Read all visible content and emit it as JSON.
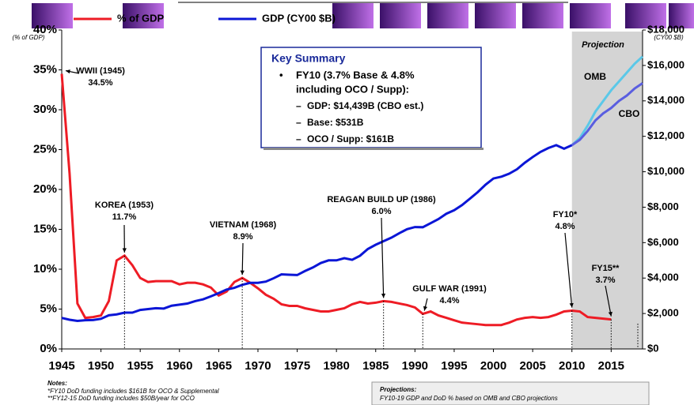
{
  "chart_data": {
    "type": "line",
    "xlim": [
      1945,
      2019
    ],
    "xticks": [
      1945,
      1950,
      1955,
      1960,
      1965,
      1970,
      1975,
      1980,
      1985,
      1990,
      1995,
      2000,
      2005,
      2010,
      2015
    ],
    "ylim": [
      0,
      40
    ],
    "yticks": [
      {
        "value": 0,
        "label": "0%"
      },
      {
        "value": 5,
        "label": "5%"
      },
      {
        "value": 10,
        "label": "10%"
      },
      {
        "value": 15,
        "label": "15%"
      },
      {
        "value": 20,
        "label": "20%"
      },
      {
        "value": 25,
        "label": "25%"
      },
      {
        "value": 30,
        "label": "30%"
      },
      {
        "value": 35,
        "label": "35%"
      },
      {
        "value": 40,
        "label": "40%"
      }
    ],
    "y_unit": "(% of GDP)",
    "y2lim": [
      0,
      18000
    ],
    "y2ticks": [
      {
        "value": 0,
        "label": "$0"
      },
      {
        "value": 2000,
        "label": "$2,000"
      },
      {
        "value": 4000,
        "label": "$4,000"
      },
      {
        "value": 6000,
        "label": "$6,000"
      },
      {
        "value": 8000,
        "label": "$8,000"
      },
      {
        "value": 10000,
        "label": "$10,000"
      },
      {
        "value": 12000,
        "label": "$12,000"
      },
      {
        "value": 14000,
        "label": "$14,000"
      },
      {
        "value": 16000,
        "label": "$16,000"
      },
      {
        "value": 18000,
        "label": "$18,000"
      }
    ],
    "y2_unit": "(CY00 $B)",
    "series": [
      {
        "name": "% of GDP",
        "color": "#ee1c25",
        "x": [
          1945,
          1946,
          1947,
          1948,
          1949,
          1950,
          1951,
          1952,
          1953,
          1954,
          1955,
          1956,
          1957,
          1958,
          1959,
          1960,
          1961,
          1962,
          1963,
          1964,
          1965,
          1966,
          1967,
          1968,
          1969,
          1970,
          1971,
          1972,
          1973,
          1974,
          1975,
          1976,
          1977,
          1978,
          1979,
          1980,
          1981,
          1982,
          1983,
          1984,
          1985,
          1986,
          1987,
          1988,
          1989,
          1990,
          1991,
          1992,
          1993,
          1994,
          1995,
          1996,
          1997,
          1998,
          1999,
          2000,
          2001,
          2002,
          2003,
          2004,
          2005,
          2006,
          2007,
          2008,
          2009,
          2010,
          2011,
          2012,
          2013,
          2014,
          2015
        ],
        "values": [
          34.5,
          22,
          5.7,
          3.9,
          4.0,
          4.2,
          6.0,
          11.1,
          11.7,
          10.5,
          8.9,
          8.4,
          8.5,
          8.5,
          8.5,
          8.1,
          8.3,
          8.3,
          8.1,
          7.7,
          6.7,
          7.2,
          8.4,
          8.9,
          8.3,
          7.6,
          6.8,
          6.3,
          5.6,
          5.4,
          5.4,
          5.1,
          4.9,
          4.7,
          4.7,
          4.9,
          5.1,
          5.6,
          5.9,
          5.7,
          5.8,
          6.0,
          5.9,
          5.7,
          5.5,
          5.2,
          4.4,
          4.7,
          4.2,
          3.9,
          3.6,
          3.3,
          3.2,
          3.1,
          3.0,
          3.0,
          3.0,
          3.3,
          3.7,
          3.9,
          4.0,
          3.9,
          4.0,
          4.3,
          4.7,
          4.8,
          4.7,
          4.0,
          3.9,
          3.8,
          3.7
        ]
      },
      {
        "name": "GDP (CY00 $B)",
        "color": "#0b16d6",
        "axis": "y2",
        "x": [
          1945,
          1946,
          1947,
          1948,
          1949,
          1950,
          1951,
          1952,
          1953,
          1954,
          1955,
          1956,
          1957,
          1958,
          1959,
          1960,
          1961,
          1962,
          1963,
          1964,
          1965,
          1966,
          1967,
          1968,
          1969,
          1970,
          1971,
          1972,
          1973,
          1974,
          1975,
          1976,
          1977,
          1978,
          1979,
          1980,
          1981,
          1982,
          1983,
          1984,
          1985,
          1986,
          1987,
          1988,
          1989,
          1990,
          1991,
          1992,
          1993,
          1994,
          1995,
          1996,
          1997,
          1998,
          1999,
          2000,
          2001,
          2002,
          2003,
          2004,
          2005,
          2006,
          2007,
          2008,
          2009,
          2010
        ],
        "values": [
          1750,
          1650,
          1580,
          1620,
          1630,
          1700,
          1900,
          1950,
          2050,
          2050,
          2200,
          2250,
          2300,
          2280,
          2440,
          2500,
          2560,
          2700,
          2800,
          2970,
          3150,
          3350,
          3450,
          3620,
          3730,
          3730,
          3800,
          3990,
          4210,
          4190,
          4170,
          4400,
          4600,
          4850,
          5000,
          5000,
          5120,
          5030,
          5260,
          5640,
          5880,
          6080,
          6280,
          6530,
          6760,
          6880,
          6870,
          7100,
          7330,
          7630,
          7830,
          8120,
          8480,
          8850,
          9270,
          9620,
          9720,
          9890,
          10140,
          10510,
          10830,
          11120,
          11340,
          11500,
          11300,
          11500
        ]
      }
    ],
    "projections": [
      {
        "name": "OMB",
        "color": "#5bc8e8",
        "axis": "y2",
        "x": [
          2010,
          2011,
          2012,
          2013,
          2014,
          2015,
          2016,
          2017,
          2018,
          2019
        ],
        "values": [
          11500,
          11900,
          12600,
          13400,
          14000,
          14600,
          15100,
          15600,
          16100,
          16500
        ]
      },
      {
        "name": "CBO",
        "color": "#5a5ee0",
        "axis": "y2",
        "x": [
          2010,
          2011,
          2012,
          2013,
          2014,
          2015,
          2016,
          2017,
          2018,
          2019
        ],
        "values": [
          11500,
          11800,
          12300,
          12900,
          13300,
          13600,
          14000,
          14300,
          14700,
          15000
        ]
      }
    ],
    "projection_label": "Projection",
    "projection_start": 2010,
    "annotations": [
      {
        "label": "WWII (1945)",
        "value_label": "34.5%",
        "x": 1945
      },
      {
        "label": "KOREA (1953)",
        "value_label": "11.7%",
        "x": 1953
      },
      {
        "label": "VIETNAM (1968)",
        "value_label": "8.9%",
        "x": 1968
      },
      {
        "label": "REAGAN BUILD UP (1986)",
        "value_label": "6.0%",
        "x": 1986
      },
      {
        "label": "GULF WAR (1991)",
        "value_label": "4.4%",
        "x": 1991
      },
      {
        "label": "FY10*",
        "value_label": "4.8%",
        "x": 2010
      },
      {
        "label": "FY15**",
        "value_label": "3.7%",
        "x": 2015
      }
    ]
  },
  "key_summary": {
    "title": "Key Summary",
    "main": [
      "FY10 (3.7% Base & 4.8%",
      "including OCO / Supp):"
    ],
    "items": [
      "GDP: $14,439B (CBO est.)",
      "Base: $531B",
      "OCO / Supp: $161B"
    ]
  },
  "notes": {
    "title": "Notes:",
    "lines": [
      "*FY10 DoD funding includes $161B for OCO & Supplemental",
      "**FY12-15 DoD funding includes $50B/year for OCO"
    ]
  },
  "projections_note": {
    "title": "Projections:",
    "text": "FY10-19 GDP and DoD % based on OMB and CBO projections"
  }
}
